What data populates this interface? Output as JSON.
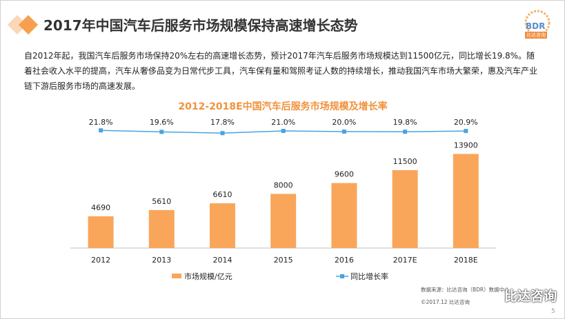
{
  "header": {
    "title": "2017年中国汽车后服务市场规模保持高速增长态势",
    "logo_text": "BDR",
    "logo_sub": "比达咨询"
  },
  "intro": {
    "text": "自2012年起，我国汽车后服务市场保持20%左右的高速增长态势，预计2017年汽车后服务市场规模达到11500亿元，同比增长19.8%。随着社会收入水平的提高，汽车从奢侈品变为日常代步工具，汽车保有量和驾照考证人数的持续增长，推动我国汽车市场大繁荣，惠及汽车产业链下游后服务市场的高速发展。"
  },
  "chart_data": {
    "type": "bar",
    "title": "2012-2018E中国汽车后服务市场规模及增长率",
    "categories": [
      "2012",
      "2013",
      "2014",
      "2015",
      "2016",
      "2017E",
      "2018E"
    ],
    "series": [
      {
        "name": "市场规模/亿元",
        "type": "bar",
        "values": [
          4690,
          5610,
          6610,
          8000,
          9600,
          11500,
          13900
        ],
        "labels": [
          "4690",
          "5610",
          "6610",
          "8000",
          "9600",
          "11500",
          "13900"
        ],
        "color": "#f9a65a"
      },
      {
        "name": "同比增长率",
        "type": "line",
        "values": [
          21.8,
          19.6,
          17.8,
          21.0,
          20.0,
          19.8,
          20.9
        ],
        "labels": [
          "21.8%",
          "19.6%",
          "17.8%",
          "21.0%",
          "20.0%",
          "19.8%",
          "20.9%"
        ],
        "color": "#4aa3df"
      }
    ],
    "legend": "bottom",
    "grid": false
  },
  "footer": {
    "source": "数据来源：比达咨询（BDR）数据中心",
    "copyright": "©2017.12 比达咨询",
    "watermark": "比达咨询",
    "page_number": "5"
  }
}
